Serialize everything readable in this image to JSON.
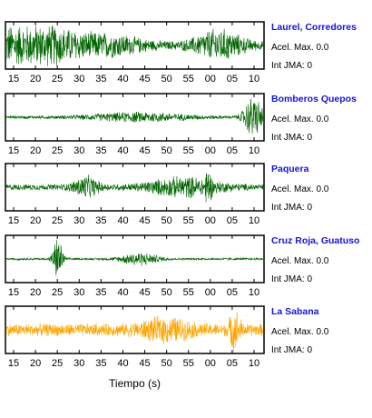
{
  "chart_data": {
    "type": "line",
    "xlabel": "Tiempo (s)",
    "x_ticks": [
      "15",
      "20",
      "25",
      "30",
      "35",
      "40",
      "45",
      "50",
      "55",
      "00",
      "05",
      "10"
    ],
    "accel_label": "Acel. Max.",
    "int_label": "Int JMA:",
    "panels": [
      {
        "station": "Laurel, Corredores",
        "accel_max": "0.0",
        "int_jma": "0",
        "color": "#006400",
        "baseline_amp": 0.18,
        "events": [
          {
            "t": 8,
            "amp": 0.8,
            "width": 30
          },
          {
            "t": 35,
            "amp": 0.9,
            "width": 25
          },
          {
            "t": 58,
            "amp": 0.55,
            "width": 40
          },
          {
            "t": 112,
            "amp": 0.45,
            "width": 60
          },
          {
            "t": 240,
            "amp": 0.65,
            "width": 40
          }
        ]
      },
      {
        "station": "Bomberos Quepos",
        "accel_max": "0.0",
        "int_jma": "0",
        "color": "#006400",
        "baseline_amp": 0.07,
        "events": [
          {
            "t": 150,
            "amp": 0.2,
            "width": 80
          },
          {
            "t": 279,
            "amp": 1.0,
            "width": 15
          }
        ]
      },
      {
        "station": "Paquera",
        "accel_max": "0.0",
        "int_jma": "0",
        "color": "#006400",
        "baseline_amp": 0.14,
        "events": [
          {
            "t": 90,
            "amp": 0.45,
            "width": 20
          },
          {
            "t": 200,
            "amp": 0.4,
            "width": 60
          },
          {
            "t": 228,
            "amp": 1.0,
            "width": 4
          }
        ]
      },
      {
        "station": "Cruz Roja, Guatuso",
        "accel_max": "0.0",
        "int_jma": "0",
        "color": "#006400",
        "baseline_amp": 0.05,
        "events": [
          {
            "t": 58,
            "amp": 1.0,
            "width": 8
          },
          {
            "t": 150,
            "amp": 0.3,
            "width": 30
          }
        ]
      },
      {
        "station": "La Sabana",
        "accel_max": "0.0",
        "int_jma": "0",
        "color": "#ffa500",
        "baseline_amp": 0.3,
        "events": [
          {
            "t": 258,
            "amp": 1.0,
            "width": 8
          },
          {
            "t": 180,
            "amp": 0.4,
            "width": 40
          }
        ]
      }
    ]
  }
}
